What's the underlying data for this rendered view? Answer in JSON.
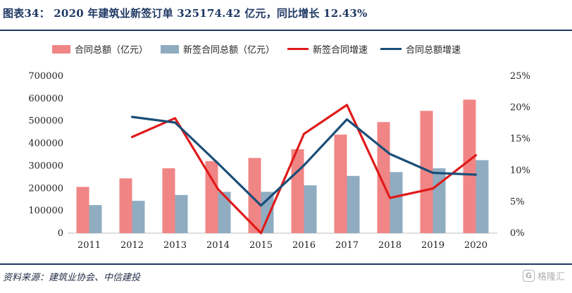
{
  "title": "图表34： 2020 年建筑业新签订单 325174.42 亿元，同比增长 12.43%",
  "source": "资料来源：建筑业协会、中信建投",
  "watermark": {
    "icon": "G",
    "text": "格隆汇"
  },
  "colors": {
    "total_bar": "#f08585",
    "new_bar": "#8facc1",
    "new_growth_line": "#e01b1b",
    "total_growth_line": "#1a4e78",
    "rule": "#1f3864"
  },
  "chart_data": {
    "type": "bar",
    "categories": [
      "2011",
      "2012",
      "2013",
      "2014",
      "2015",
      "2016",
      "2017",
      "2018",
      "2019",
      "2020"
    ],
    "series": [
      {
        "name": "合同总额（亿元）",
        "type": "bar",
        "axis": "left",
        "values": [
          206000,
          244000,
          289000,
          321000,
          335000,
          374000,
          439000,
          495000,
          545000,
          595000
        ]
      },
      {
        "name": "新签合同总额（亿元）",
        "type": "bar",
        "axis": "left",
        "values": [
          125000,
          144000,
          170000,
          184000,
          184000,
          213000,
          255000,
          272000,
          289000,
          325174.42
        ]
      },
      {
        "name": "新签合同增速",
        "type": "line",
        "axis": "right",
        "values": [
          null,
          15.3,
          18.3,
          7.0,
          0.0,
          15.8,
          20.4,
          5.6,
          7.1,
          12.4
        ]
      },
      {
        "name": "合同总额增速",
        "type": "line",
        "axis": "right",
        "values": [
          null,
          18.5,
          17.6,
          11.1,
          4.4,
          10.8,
          18.1,
          12.6,
          9.6,
          9.3
        ]
      }
    ],
    "left_axis": {
      "ticks": [
        "0",
        "100000",
        "200000",
        "300000",
        "400000",
        "500000",
        "600000",
        "700000"
      ],
      "ylim": [
        0,
        700000
      ]
    },
    "right_axis": {
      "ticks": [
        "0%",
        "5%",
        "10%",
        "15%",
        "20%",
        "25%"
      ],
      "ylim": [
        0,
        25
      ]
    },
    "legend": "top",
    "grid": false
  }
}
